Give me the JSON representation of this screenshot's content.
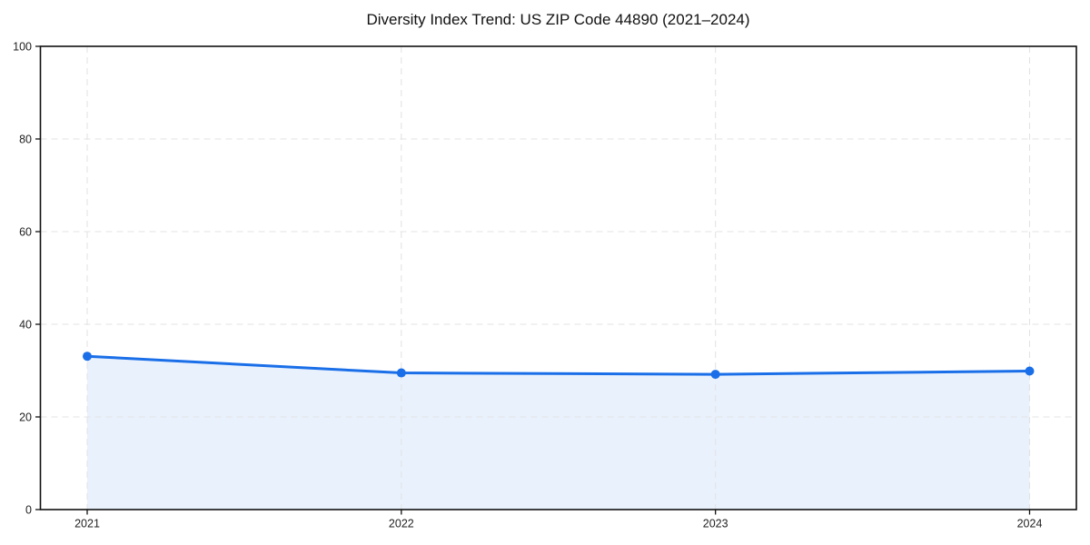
{
  "figure": {
    "background_color": "#ffffff"
  },
  "chart_data": {
    "type": "area",
    "title": "Diversity Index Trend: US ZIP Code 44890 (2021–2024)",
    "categories": [
      "2021",
      "2022",
      "2023",
      "2024"
    ],
    "values": [
      33.1,
      29.5,
      29.2,
      29.9
    ],
    "series_name": "Diversity Index",
    "xlabel": "",
    "ylabel": "",
    "ylim": [
      0,
      100
    ],
    "yticks": [
      0,
      20,
      40,
      60,
      80,
      100
    ],
    "grid": {
      "visible": true,
      "style": "dashed",
      "horizontal": true,
      "vertical": true
    },
    "legend": "none",
    "marker": "circle",
    "colors": {
      "line": "#1a6fe8",
      "marker": "#1a6fe8",
      "fill": "#e9f1fd",
      "grid": "#e3e3e3",
      "axis": "#111111",
      "tick_text": "#222222",
      "title_text": "#111111",
      "background": "#ffffff"
    }
  }
}
